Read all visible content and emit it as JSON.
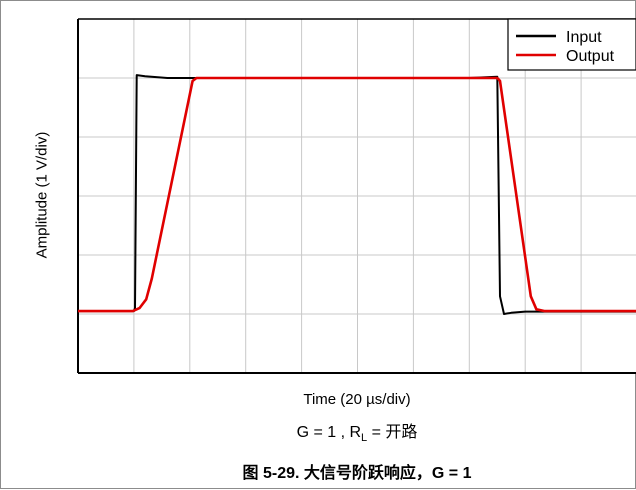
{
  "chart_data": {
    "type": "line",
    "title": "",
    "xlabel": "Time (20 µs/div)",
    "ylabel": "Amplitude (1 V/div)",
    "x_divisions": 10,
    "y_divisions": 6,
    "xlim": [
      0,
      10
    ],
    "ylim": [
      0,
      6
    ],
    "grid": true,
    "legend_position": "top-right",
    "series": [
      {
        "name": "Input",
        "color": "#000000",
        "x": [
          0,
          1.0,
          1.02,
          1.05,
          1.2,
          1.6,
          6.8,
          7.0,
          7.5,
          7.55,
          7.62,
          7.75,
          8.0,
          10
        ],
        "y": [
          1.05,
          1.05,
          1.1,
          5.05,
          5.03,
          5.0,
          5.0,
          5.0,
          5.02,
          1.3,
          1.0,
          1.02,
          1.04,
          1.04
        ]
      },
      {
        "name": "Output",
        "color": "#e00000",
        "x": [
          0,
          0.98,
          1.1,
          1.22,
          1.32,
          2.05,
          2.12,
          7.5,
          7.55,
          8.1,
          8.2,
          8.35,
          10
        ],
        "y": [
          1.05,
          1.05,
          1.1,
          1.25,
          1.6,
          4.95,
          5.0,
          5.0,
          4.95,
          1.3,
          1.08,
          1.05,
          1.05
        ]
      }
    ]
  },
  "condition": {
    "prefix": "G = 1 , R",
    "subscript": "L",
    "suffix": " = 开路"
  },
  "caption": "图 5-29. 大信号阶跃响应，G = 1"
}
